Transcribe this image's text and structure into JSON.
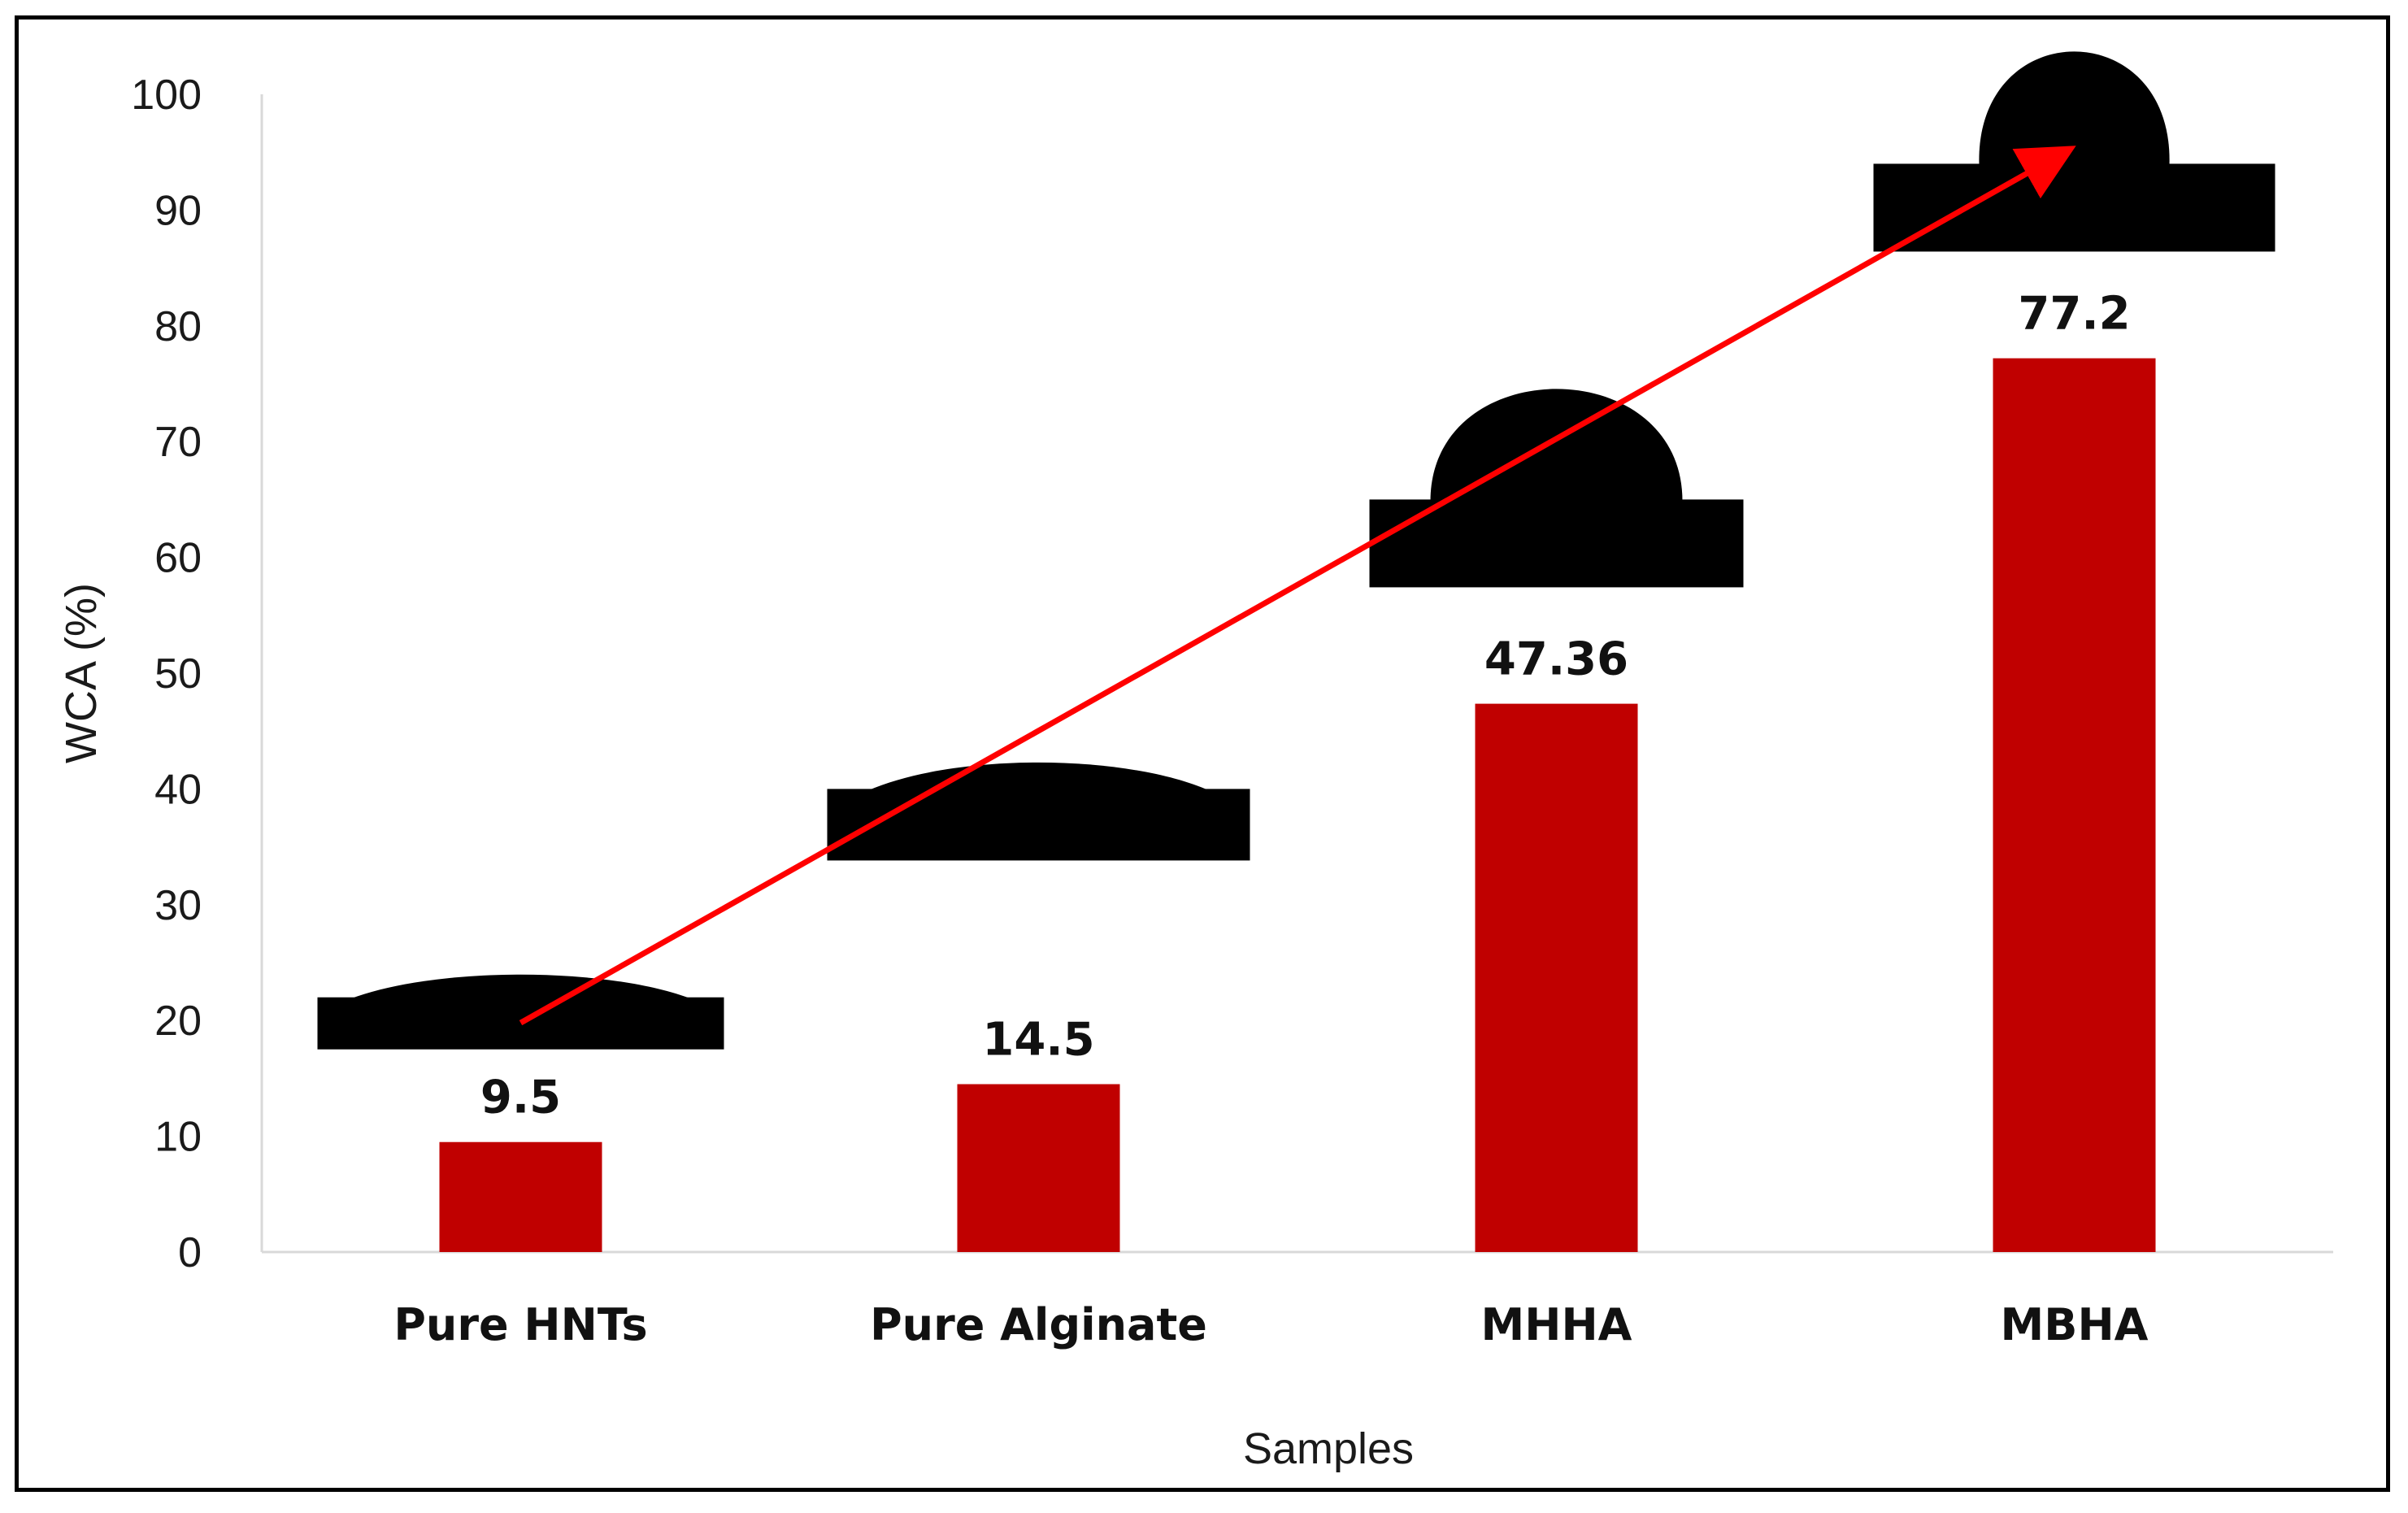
{
  "chart_data": {
    "type": "bar",
    "categories": [
      "Pure HNTs",
      "Pure Alginate",
      "MHHA",
      "MBHA"
    ],
    "values": [
      9.5,
      14.5,
      47.36,
      77.2
    ],
    "value_labels": [
      "9.5",
      "14.5",
      "47.36",
      "77.2"
    ],
    "xlabel": "Samples",
    "ylabel": "WCA (%)",
    "ylim": [
      0,
      100
    ],
    "yticks": [
      0,
      10,
      20,
      30,
      40,
      50,
      60,
      70,
      80,
      90,
      100
    ],
    "ytick_labels": [
      "0",
      "10",
      "20",
      "30",
      "40",
      "50",
      "60",
      "70",
      "80",
      "90",
      "100"
    ],
    "grid": false,
    "legend": "none",
    "bar_color": "#c00000",
    "trend_arrow_color": "#ff0000",
    "trend_arrow": {
      "from": {
        "category": "Pure HNTs",
        "y": 19.8
      },
      "to": {
        "category": "MBHA",
        "y": 95.5
      }
    },
    "droplet_images": [
      {
        "category": "Pure HNTs",
        "base_y": 22,
        "description": "flat droplet"
      },
      {
        "category": "Pure Alginate",
        "base_y": 40,
        "description": "low droplet"
      },
      {
        "category": "MHHA",
        "base_y": 65,
        "description": "hemispherical droplet"
      },
      {
        "category": "MBHA",
        "base_y": 94,
        "description": "tall droplet"
      }
    ]
  }
}
